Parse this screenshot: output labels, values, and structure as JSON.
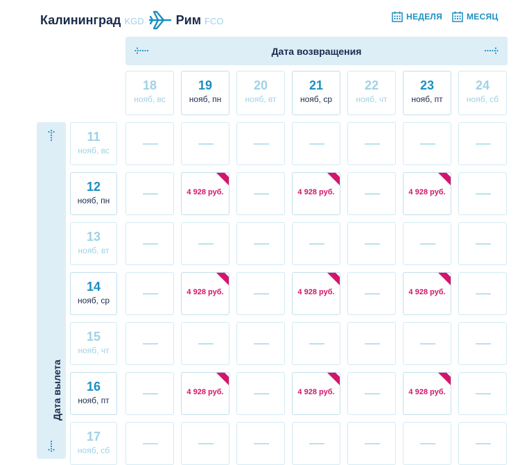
{
  "route": {
    "from_city": "Калининград",
    "from_code": "KGD",
    "to_city": "Рим",
    "to_code": "FCO"
  },
  "view_switch": {
    "week_label": "НЕДЕЛЯ",
    "month_label": "МЕСЯЦ"
  },
  "return_axis": {
    "label": "Дата возвращения",
    "dates": [
      {
        "day": "18",
        "weekday": "нояб, вс",
        "available": false
      },
      {
        "day": "19",
        "weekday": "нояб, пн",
        "available": true
      },
      {
        "day": "20",
        "weekday": "нояб, вт",
        "available": false
      },
      {
        "day": "21",
        "weekday": "нояб, ср",
        "available": true
      },
      {
        "day": "22",
        "weekday": "нояб, чт",
        "available": false
      },
      {
        "day": "23",
        "weekday": "нояб, пт",
        "available": true
      },
      {
        "day": "24",
        "weekday": "нояб, сб",
        "available": false
      }
    ]
  },
  "departure_axis": {
    "label": "Дата вылета",
    "dates": [
      {
        "day": "11",
        "weekday": "нояб, вс",
        "available": false
      },
      {
        "day": "12",
        "weekday": "нояб, пн",
        "available": true
      },
      {
        "day": "13",
        "weekday": "нояб, вт",
        "available": false
      },
      {
        "day": "14",
        "weekday": "нояб, ср",
        "available": true
      },
      {
        "day": "15",
        "weekday": "нояб, чт",
        "available": false
      },
      {
        "day": "16",
        "weekday": "нояб, пт",
        "available": true
      },
      {
        "day": "17",
        "weekday": "нояб, сб",
        "available": false
      }
    ]
  },
  "price_grid": [
    [
      "",
      "",
      "",
      "",
      "",
      "",
      ""
    ],
    [
      "",
      "4 928 руб.",
      "",
      "4 928 руб.",
      "",
      "4 928 руб.",
      ""
    ],
    [
      "",
      "",
      "",
      "",
      "",
      "",
      ""
    ],
    [
      "",
      "4 928 руб.",
      "",
      "4 928 руб.",
      "",
      "4 928 руб.",
      ""
    ],
    [
      "",
      "",
      "",
      "",
      "",
      "",
      ""
    ],
    [
      "",
      "4 928 руб.",
      "",
      "4 928 руб.",
      "",
      "4 928 руб.",
      ""
    ],
    [
      "",
      "",
      "",
      "",
      "",
      "",
      ""
    ]
  ],
  "colors": {
    "accent": "#1b8fc2",
    "price": "#d2166a",
    "dim": "#9fd2e6",
    "bar": "#deeef7"
  }
}
